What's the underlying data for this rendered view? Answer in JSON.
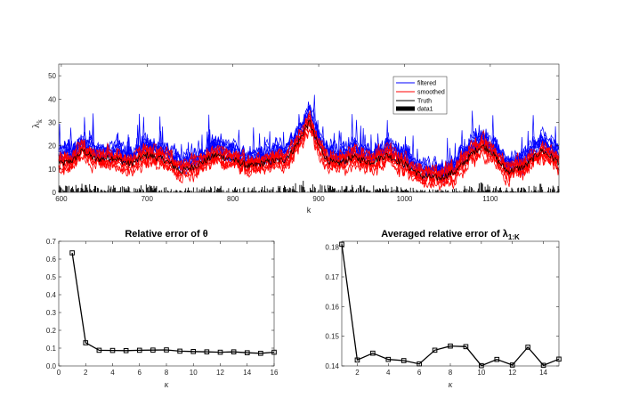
{
  "chart_data": [
    {
      "type": "line",
      "ylabel": "λ",
      "ylabel_sub": "k",
      "xlabel": "k",
      "xlim": [
        597,
        1180
      ],
      "ylim": [
        0,
        55
      ],
      "x_ticks": [
        600,
        700,
        800,
        900,
        1000,
        1100
      ],
      "y_ticks": [
        0,
        10,
        20,
        30,
        40,
        50
      ],
      "legend_position": "top-right",
      "legend": [
        {
          "name": "filtered",
          "color": "#0000ff"
        },
        {
          "name": "smoothed",
          "color": "#ff0000"
        },
        {
          "name": "Truth",
          "color": "#000000"
        },
        {
          "name": "data1",
          "color": "#000000"
        }
      ],
      "truth_anchors": {
        "x": [
          600,
          615,
          625,
          640,
          660,
          680,
          700,
          720,
          740,
          760,
          780,
          800,
          820,
          840,
          860,
          870,
          880,
          885,
          890,
          895,
          900,
          910,
          920,
          940,
          960,
          980,
          1000,
          1020,
          1040,
          1060,
          1080,
          1090,
          1100,
          1110,
          1120,
          1140,
          1160,
          1180
        ],
        "y": [
          12,
          14,
          18,
          14,
          15,
          12,
          16,
          14,
          9,
          12,
          16,
          14,
          11,
          13,
          14,
          18,
          24,
          28,
          30,
          24,
          20,
          14,
          12,
          15,
          13,
          16,
          12,
          7,
          6,
          9,
          17,
          20,
          18,
          13,
          9,
          11,
          18,
          13
        ]
      },
      "colors": {
        "filtered": "#0000ff",
        "smoothed": "#ff0000",
        "truth": "#000000"
      }
    },
    {
      "type": "line",
      "title": "Relative error of θ",
      "xlabel": "κ",
      "xlim": [
        0,
        16
      ],
      "ylim": [
        0,
        0.7
      ],
      "x_ticks": [
        0,
        2,
        4,
        6,
        8,
        10,
        12,
        14,
        16
      ],
      "y_ticks": [
        0,
        0.1,
        0.2,
        0.3,
        0.4,
        0.5,
        0.6,
        0.7
      ],
      "x": [
        1,
        2,
        3,
        4,
        5,
        6,
        7,
        8,
        9,
        10,
        11,
        12,
        13,
        14,
        15,
        16
      ],
      "values": [
        0.635,
        0.13,
        0.088,
        0.087,
        0.086,
        0.088,
        0.089,
        0.09,
        0.083,
        0.081,
        0.079,
        0.077,
        0.079,
        0.074,
        0.071,
        0.077
      ]
    },
    {
      "type": "line",
      "title": "Averaged relative error of λ",
      "title_sub": "1:K",
      "xlabel": "κ",
      "xlim": [
        1,
        15
      ],
      "ylim": [
        0.14,
        0.182
      ],
      "x_ticks": [
        2,
        4,
        6,
        8,
        10,
        12,
        14
      ],
      "y_ticks": [
        0.14,
        0.15,
        0.16,
        0.17,
        0.18
      ],
      "x": [
        1,
        2,
        3,
        4,
        5,
        6,
        7,
        8,
        9,
        10,
        11,
        12,
        13,
        14,
        15
      ],
      "values": [
        0.181,
        0.142,
        0.1443,
        0.1422,
        0.1418,
        0.1407,
        0.1453,
        0.1467,
        0.1465,
        0.1401,
        0.1422,
        0.1403,
        0.1463,
        0.1402,
        0.1423
      ]
    }
  ]
}
